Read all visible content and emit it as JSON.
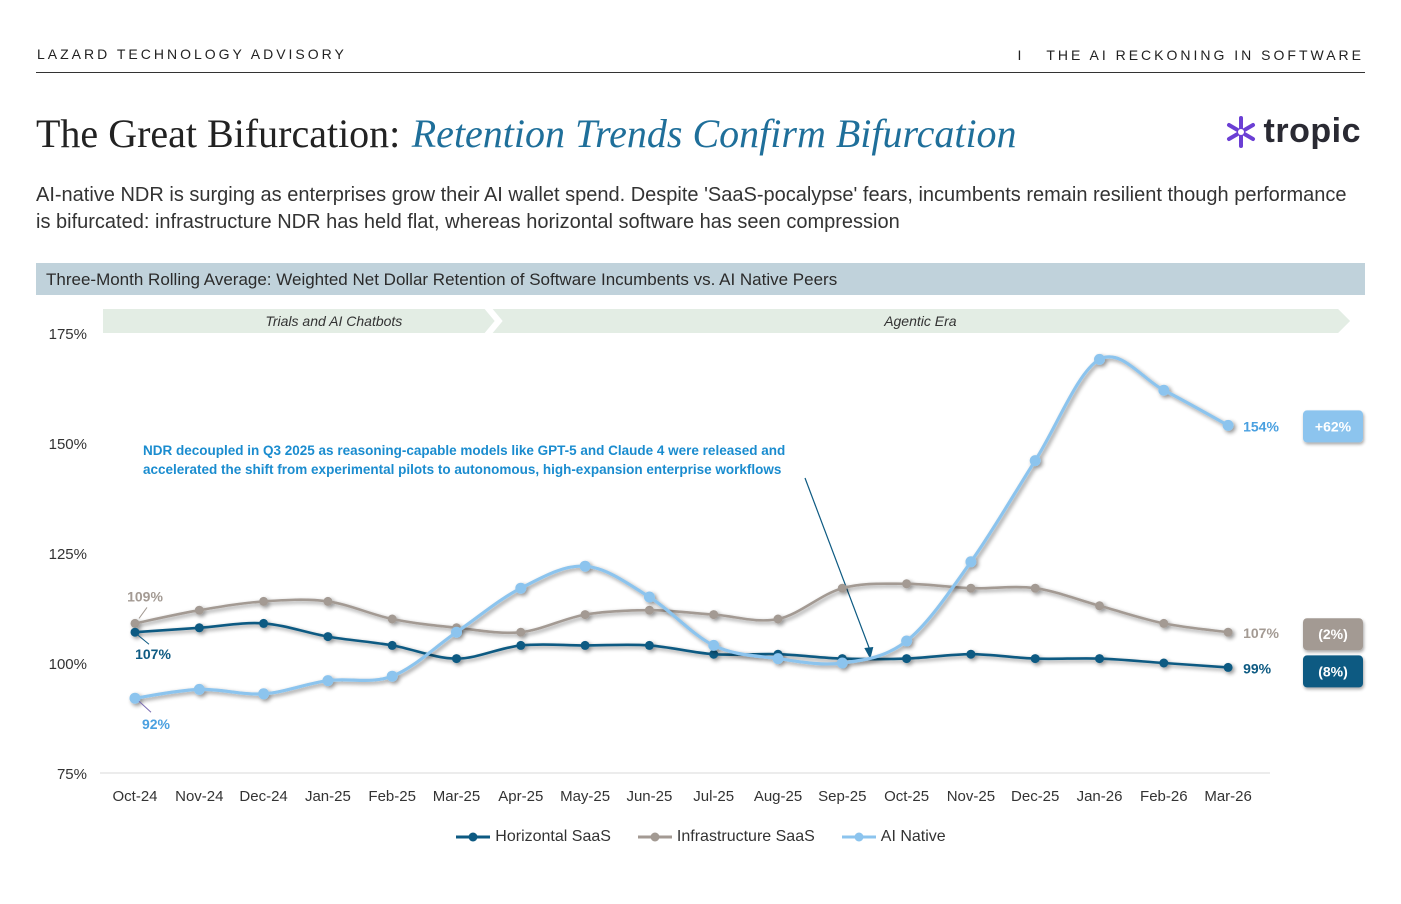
{
  "header": {
    "left": "LAZARD TECHNOLOGY ADVISORY",
    "divider": "I",
    "right": "THE AI RECKONING IN SOFTWARE"
  },
  "title": {
    "main": "The Great Bifurcation:",
    "italic": "Retention Trends Confirm Bifurcation"
  },
  "logo": {
    "icon": "asterisk-logo-icon",
    "text": "tropic",
    "color": "#6b3fd4"
  },
  "subtitle": "AI-native NDR is surging as enterprises grow their AI wallet spend. Despite 'SaaS-pocalypse' fears, incumbents remain resilient though performance is bifurcated: infrastructure NDR has held flat, whereas horizontal software has seen compression",
  "chart_banner": "Three-Month Rolling Average: Weighted Net Dollar Retention of Software Incumbents vs. AI Native Peers",
  "chart_data": {
    "type": "line",
    "categories": [
      "Oct-24",
      "Nov-24",
      "Dec-24",
      "Jan-25",
      "Feb-25",
      "Mar-25",
      "Apr-25",
      "May-25",
      "Jun-25",
      "Jul-25",
      "Aug-25",
      "Sep-25",
      "Oct-25",
      "Nov-25",
      "Dec-25",
      "Jan-26",
      "Feb-26",
      "Mar-26"
    ],
    "ylim": [
      75,
      175
    ],
    "yticks": [
      "75%",
      "100%",
      "125%",
      "150%",
      "175%"
    ],
    "yticks_values": [
      75,
      100,
      125,
      150,
      175
    ],
    "grid": false,
    "legend_position": "bottom",
    "series": [
      {
        "name": "Horizontal SaaS",
        "color": "#0d5a82",
        "values": [
          107,
          108,
          109,
          106,
          104,
          101,
          104,
          104,
          104,
          102,
          102,
          101,
          101,
          102,
          101,
          101,
          100,
          99
        ]
      },
      {
        "name": "Infrastructure SaaS",
        "color": "#a39a93",
        "values": [
          109,
          112,
          114,
          114,
          110,
          108,
          107,
          111,
          112,
          111,
          110,
          117,
          118,
          117,
          117,
          113,
          109,
          107
        ]
      },
      {
        "name": "AI Native",
        "color": "#8cc4ee",
        "values": [
          92,
          94,
          93,
          96,
          97,
          107,
          117,
          122,
          115,
          104,
          101,
          100,
          105,
          123,
          146,
          169,
          162,
          154
        ]
      }
    ],
    "phases": [
      {
        "label": "Trials and AI Chatbots",
        "from": "Oct-24",
        "to": "Mar-25"
      },
      {
        "label": "Agentic Era",
        "from": "Apr-25",
        "to": "Mar-26"
      }
    ],
    "start_labels": {
      "Horizontal SaaS": "107%",
      "Infrastructure SaaS": "109%",
      "AI Native": "92%"
    },
    "end_labels": {
      "Horizontal SaaS": "99%",
      "Infrastructure SaaS": "107%",
      "AI Native": "154%"
    },
    "change_badges": [
      {
        "series": "AI Native",
        "text": "+62%",
        "fill": "#8cc4ee"
      },
      {
        "series": "Infrastructure SaaS",
        "text": "(2%)",
        "fill": "#a39a93"
      },
      {
        "series": "Horizontal SaaS",
        "text": "(8%)",
        "fill": "#0d5a82"
      }
    ],
    "annotation": {
      "lines": [
        "NDR decoupled in Q3 2025 as reasoning-capable models like GPT-5 and Claude 4 were released and",
        "accelerated the shift from experimental pilots to autonomous, high-expansion enterprise workflows"
      ],
      "points_to": "Sep-25",
      "color": "#1a8ccf"
    }
  }
}
